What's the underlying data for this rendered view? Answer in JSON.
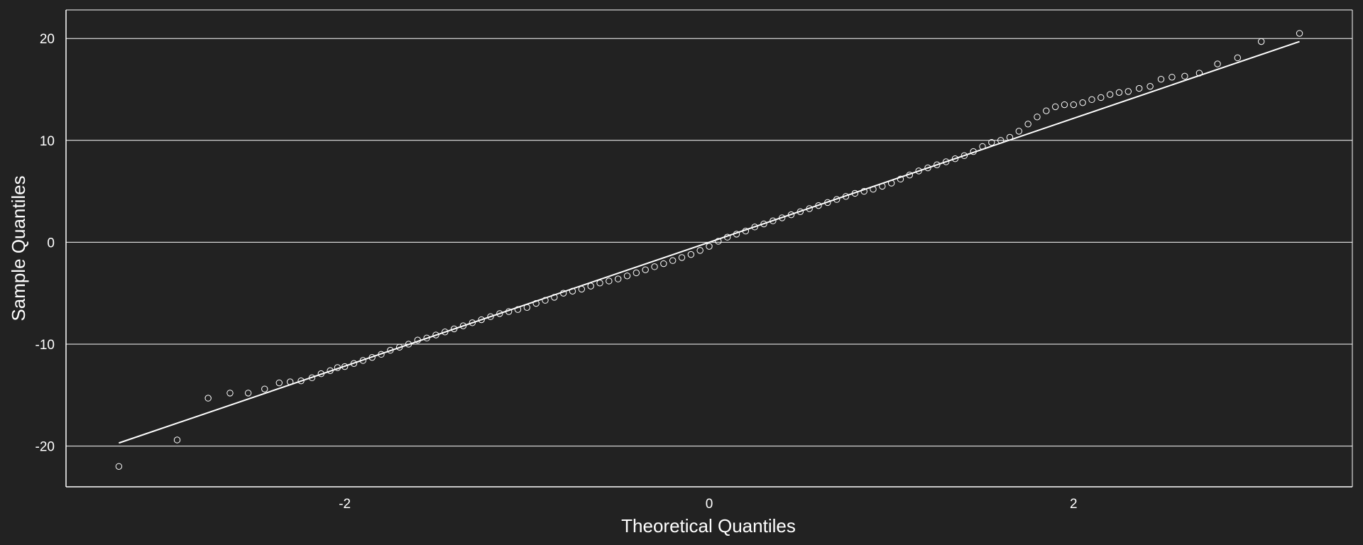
{
  "colors": {
    "background": "#222222",
    "foreground": "#ffffff",
    "grid": "#ffffff",
    "points": "#ffffff",
    "reference_line": "#ffffff"
  },
  "chart_data": {
    "type": "scatter",
    "title": "",
    "xlabel": "Theoretical Quantiles",
    "ylabel": "Sample Quantiles",
    "xlim": [
      -3.53,
      3.53
    ],
    "ylim": [
      -24,
      22.8
    ],
    "x_ticks": [
      -2,
      0,
      2
    ],
    "y_ticks": [
      -20,
      -10,
      0,
      10,
      20
    ],
    "x_tick_labels": [
      "-2",
      "0",
      "2"
    ],
    "y_tick_labels": [
      "-20",
      "-10",
      "0",
      "10",
      "20"
    ],
    "grid": "horizontal",
    "legend": "none",
    "point_style": "open-circle",
    "reference_line": {
      "x": [
        -3.24,
        3.24
      ],
      "y": [
        -19.7,
        19.7
      ]
    },
    "series": [
      {
        "points": [
          [
            -3.24,
            -22.0
          ],
          [
            -2.92,
            -19.4
          ],
          [
            -2.75,
            -15.3
          ],
          [
            -2.63,
            -14.8
          ],
          [
            -2.53,
            -14.8
          ],
          [
            -2.44,
            -14.4
          ],
          [
            -2.36,
            -13.8
          ],
          [
            -2.3,
            -13.7
          ],
          [
            -2.24,
            -13.6
          ],
          [
            -2.18,
            -13.3
          ],
          [
            -2.13,
            -12.9
          ],
          [
            -2.08,
            -12.6
          ],
          [
            -2.04,
            -12.3
          ],
          [
            -2.0,
            -12.2
          ],
          [
            -1.95,
            -11.9
          ],
          [
            -1.9,
            -11.6
          ],
          [
            -1.85,
            -11.3
          ],
          [
            -1.8,
            -11.0
          ],
          [
            -1.75,
            -10.6
          ],
          [
            -1.7,
            -10.3
          ],
          [
            -1.65,
            -10.0
          ],
          [
            -1.6,
            -9.6
          ],
          [
            -1.55,
            -9.4
          ],
          [
            -1.5,
            -9.1
          ],
          [
            -1.45,
            -8.8
          ],
          [
            -1.4,
            -8.5
          ],
          [
            -1.35,
            -8.2
          ],
          [
            -1.3,
            -7.9
          ],
          [
            -1.25,
            -7.6
          ],
          [
            -1.2,
            -7.3
          ],
          [
            -1.15,
            -7.0
          ],
          [
            -1.1,
            -6.8
          ],
          [
            -1.05,
            -6.6
          ],
          [
            -1.0,
            -6.4
          ],
          [
            -0.95,
            -6.0
          ],
          [
            -0.9,
            -5.7
          ],
          [
            -0.85,
            -5.4
          ],
          [
            -0.8,
            -5.0
          ],
          [
            -0.75,
            -4.8
          ],
          [
            -0.7,
            -4.6
          ],
          [
            -0.65,
            -4.3
          ],
          [
            -0.6,
            -4.0
          ],
          [
            -0.55,
            -3.8
          ],
          [
            -0.5,
            -3.6
          ],
          [
            -0.45,
            -3.3
          ],
          [
            -0.4,
            -3.0
          ],
          [
            -0.35,
            -2.7
          ],
          [
            -0.3,
            -2.4
          ],
          [
            -0.25,
            -2.1
          ],
          [
            -0.2,
            -1.8
          ],
          [
            -0.15,
            -1.5
          ],
          [
            -0.1,
            -1.2
          ],
          [
            -0.05,
            -0.8
          ],
          [
            0.0,
            -0.4
          ],
          [
            0.05,
            0.1
          ],
          [
            0.1,
            0.5
          ],
          [
            0.15,
            0.8
          ],
          [
            0.2,
            1.1
          ],
          [
            0.25,
            1.5
          ],
          [
            0.3,
            1.8
          ],
          [
            0.35,
            2.1
          ],
          [
            0.4,
            2.4
          ],
          [
            0.45,
            2.7
          ],
          [
            0.5,
            3.0
          ],
          [
            0.55,
            3.3
          ],
          [
            0.6,
            3.6
          ],
          [
            0.65,
            3.9
          ],
          [
            0.7,
            4.2
          ],
          [
            0.75,
            4.5
          ],
          [
            0.8,
            4.8
          ],
          [
            0.85,
            5.0
          ],
          [
            0.9,
            5.2
          ],
          [
            0.95,
            5.5
          ],
          [
            1.0,
            5.8
          ],
          [
            1.05,
            6.2
          ],
          [
            1.1,
            6.6
          ],
          [
            1.15,
            7.0
          ],
          [
            1.2,
            7.3
          ],
          [
            1.25,
            7.6
          ],
          [
            1.3,
            7.9
          ],
          [
            1.35,
            8.2
          ],
          [
            1.4,
            8.5
          ],
          [
            1.45,
            8.9
          ],
          [
            1.5,
            9.4
          ],
          [
            1.55,
            9.8
          ],
          [
            1.6,
            10.0
          ],
          [
            1.65,
            10.3
          ],
          [
            1.7,
            10.9
          ],
          [
            1.75,
            11.6
          ],
          [
            1.8,
            12.3
          ],
          [
            1.85,
            12.9
          ],
          [
            1.9,
            13.3
          ],
          [
            1.95,
            13.5
          ],
          [
            2.0,
            13.5
          ],
          [
            2.05,
            13.7
          ],
          [
            2.1,
            14.0
          ],
          [
            2.15,
            14.2
          ],
          [
            2.2,
            14.5
          ],
          [
            2.25,
            14.7
          ],
          [
            2.3,
            14.8
          ],
          [
            2.36,
            15.1
          ],
          [
            2.42,
            15.3
          ],
          [
            2.48,
            16.0
          ],
          [
            2.54,
            16.2
          ],
          [
            2.61,
            16.3
          ],
          [
            2.69,
            16.6
          ],
          [
            2.79,
            17.5
          ],
          [
            2.9,
            18.1
          ],
          [
            3.03,
            19.7
          ],
          [
            3.24,
            20.5
          ]
        ]
      }
    ]
  }
}
